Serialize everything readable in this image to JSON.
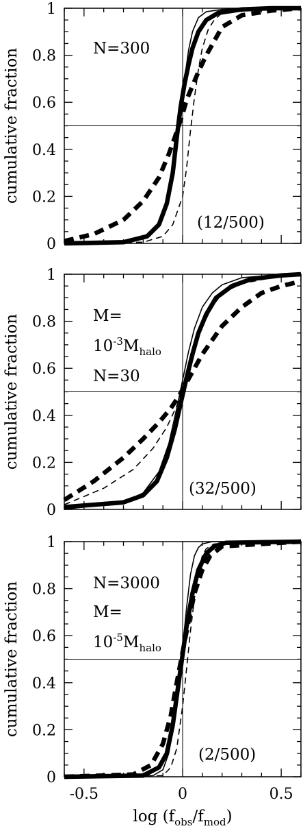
{
  "chart_data": [
    {
      "type": "line",
      "ylabel": "cumulative fraction",
      "xlim": [
        -0.6,
        0.6
      ],
      "ylim": [
        0,
        1
      ],
      "yticks": [
        "0",
        "0.2",
        "0.4",
        "0.6",
        "0.8",
        "1"
      ],
      "annotations": [
        "N=300"
      ],
      "fraction_label": "(12/500)",
      "series": [
        {
          "style": "thin-solid",
          "x": [
            -0.6,
            -0.3,
            -0.2,
            -0.12,
            -0.08,
            -0.05,
            -0.03,
            -0.01,
            0.01,
            0.03,
            0.05,
            0.08,
            0.12,
            0.2,
            0.3,
            0.6
          ],
          "y": [
            0,
            0.005,
            0.02,
            0.07,
            0.15,
            0.28,
            0.42,
            0.55,
            0.7,
            0.82,
            0.9,
            0.96,
            0.985,
            0.995,
            1,
            1
          ]
        },
        {
          "style": "thin-dashed",
          "x": [
            -0.6,
            -0.2,
            -0.1,
            -0.05,
            0,
            0.02,
            0.04,
            0.06,
            0.08,
            0.1,
            0.13,
            0.16,
            0.2,
            0.3,
            0.6
          ],
          "y": [
            0,
            0.005,
            0.03,
            0.08,
            0.2,
            0.32,
            0.48,
            0.62,
            0.74,
            0.83,
            0.91,
            0.95,
            0.98,
            0.995,
            1
          ]
        },
        {
          "style": "thick-solid",
          "x": [
            -0.6,
            -0.3,
            -0.18,
            -0.12,
            -0.08,
            -0.05,
            -0.03,
            -0.01,
            0.01,
            0.03,
            0.05,
            0.08,
            0.12,
            0.18,
            0.3,
            0.45,
            0.6
          ],
          "y": [
            0,
            0.005,
            0.03,
            0.08,
            0.17,
            0.3,
            0.45,
            0.58,
            0.68,
            0.76,
            0.83,
            0.9,
            0.95,
            0.98,
            0.995,
            1,
            1
          ]
        },
        {
          "style": "thick-dashed",
          "x": [
            -0.6,
            -0.45,
            -0.3,
            -0.2,
            -0.12,
            -0.07,
            -0.04,
            -0.02,
            0,
            0.02,
            0.05,
            0.08,
            0.12,
            0.16,
            0.2,
            0.3,
            0.45,
            0.6
          ],
          "y": [
            0.01,
            0.04,
            0.1,
            0.18,
            0.28,
            0.38,
            0.45,
            0.5,
            0.55,
            0.61,
            0.67,
            0.73,
            0.8,
            0.86,
            0.92,
            0.97,
            0.99,
            1
          ]
        }
      ]
    },
    {
      "type": "line",
      "ylabel": "cumulative fraction",
      "xlim": [
        -0.6,
        0.6
      ],
      "ylim": [
        0,
        1
      ],
      "yticks": [
        "0",
        "0.2",
        "0.4",
        "0.6",
        "0.8",
        "1"
      ],
      "annotations": [
        "M=",
        "10",
        "-3",
        "M",
        "halo",
        "N=30"
      ],
      "fraction_label": "(32/500)",
      "series": [
        {
          "style": "thin-solid",
          "x": [
            -0.6,
            -0.3,
            -0.2,
            -0.12,
            -0.07,
            -0.03,
            0,
            0.03,
            0.06,
            0.1,
            0.15,
            0.2,
            0.3,
            0.45,
            0.6
          ],
          "y": [
            0,
            0.03,
            0.07,
            0.16,
            0.28,
            0.43,
            0.55,
            0.67,
            0.77,
            0.86,
            0.92,
            0.955,
            0.985,
            0.995,
            1
          ]
        },
        {
          "style": "thin-dashed",
          "x": [
            -0.6,
            -0.4,
            -0.25,
            -0.15,
            -0.08,
            -0.03,
            0,
            0.03,
            0.06,
            0.1,
            0.15,
            0.2,
            0.3,
            0.45,
            0.6
          ],
          "y": [
            0.02,
            0.09,
            0.17,
            0.26,
            0.35,
            0.44,
            0.51,
            0.6,
            0.69,
            0.78,
            0.86,
            0.92,
            0.96,
            0.985,
            0.995
          ]
        },
        {
          "style": "thick-solid",
          "x": [
            -0.6,
            -0.3,
            -0.2,
            -0.13,
            -0.08,
            -0.04,
            -0.01,
            0.02,
            0.05,
            0.08,
            0.12,
            0.17,
            0.25,
            0.35,
            0.5,
            0.6
          ],
          "y": [
            0.01,
            0.03,
            0.06,
            0.12,
            0.22,
            0.34,
            0.45,
            0.56,
            0.66,
            0.75,
            0.83,
            0.9,
            0.95,
            0.98,
            0.995,
            1
          ]
        },
        {
          "style": "thick-dashed",
          "x": [
            -0.6,
            -0.45,
            -0.3,
            -0.2,
            -0.12,
            -0.06,
            -0.02,
            0.02,
            0.06,
            0.1,
            0.15,
            0.2,
            0.3,
            0.4,
            0.5,
            0.6
          ],
          "y": [
            0.04,
            0.12,
            0.22,
            0.3,
            0.37,
            0.43,
            0.48,
            0.54,
            0.6,
            0.66,
            0.72,
            0.78,
            0.86,
            0.92,
            0.95,
            0.97
          ]
        }
      ]
    },
    {
      "type": "line",
      "ylabel": "cumulative fraction",
      "xlabel": "log (f",
      "xlabel_sub1": "obs",
      "xlabel_mid": "/f",
      "xlabel_sub2": "mod",
      "xlabel_end": ")",
      "xlim": [
        -0.6,
        0.6
      ],
      "ylim": [
        0,
        1
      ],
      "yticks": [
        "0",
        "0.2",
        "0.4",
        "0.6",
        "0.8",
        "1"
      ],
      "xticks": [
        "-0.5",
        "0",
        "0.5"
      ],
      "annotations": [
        "N=3000",
        "M=",
        "10",
        "-5",
        "M",
        "halo"
      ],
      "fraction_label": "(2/500)",
      "series": [
        {
          "style": "thin-solid",
          "x": [
            -0.6,
            -0.15,
            -0.1,
            -0.07,
            -0.04,
            -0.02,
            0,
            0.02,
            0.04,
            0.06,
            0.08,
            0.1,
            0.15,
            0.6
          ],
          "y": [
            0,
            0.005,
            0.03,
            0.1,
            0.25,
            0.4,
            0.55,
            0.72,
            0.86,
            0.94,
            0.975,
            0.99,
            1,
            1
          ]
        },
        {
          "style": "thin-dashed",
          "x": [
            -0.6,
            -0.1,
            -0.06,
            -0.03,
            0,
            0.02,
            0.04,
            0.06,
            0.08,
            0.1,
            0.12,
            0.16,
            0.6
          ],
          "y": [
            0,
            0.005,
            0.04,
            0.12,
            0.3,
            0.46,
            0.62,
            0.76,
            0.87,
            0.94,
            0.97,
            0.99,
            1
          ]
        },
        {
          "style": "thick-solid",
          "x": [
            -0.6,
            -0.2,
            -0.12,
            -0.08,
            -0.05,
            -0.02,
            0,
            0.02,
            0.05,
            0.08,
            0.12,
            0.16,
            0.22,
            0.6
          ],
          "y": [
            0,
            0.005,
            0.04,
            0.1,
            0.22,
            0.4,
            0.52,
            0.64,
            0.78,
            0.88,
            0.95,
            0.98,
            0.995,
            1
          ]
        },
        {
          "style": "thick-dashed",
          "x": [
            -0.6,
            -0.25,
            -0.16,
            -0.1,
            -0.06,
            -0.03,
            0,
            0.03,
            0.06,
            0.1,
            0.14,
            0.2,
            0.6
          ],
          "y": [
            0,
            0.01,
            0.05,
            0.14,
            0.26,
            0.4,
            0.53,
            0.66,
            0.78,
            0.88,
            0.94,
            0.98,
            1
          ]
        }
      ]
    }
  ]
}
